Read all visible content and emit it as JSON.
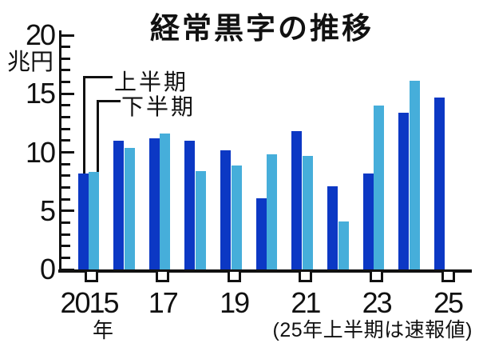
{
  "title": "経常黒字の推移",
  "y_axis": {
    "unit_label": "兆円",
    "major_tick_labels": [
      "20",
      "15",
      "10",
      "5",
      "0"
    ],
    "major_tick_values": [
      20,
      15,
      10,
      5,
      0
    ],
    "minor_step": 1,
    "max": 20,
    "min": 0
  },
  "x_axis": {
    "tick_labels": [
      "2015",
      "17",
      "19",
      "21",
      "23",
      "25"
    ],
    "labeled_pair_indices": [
      0,
      2,
      4,
      6,
      8,
      10
    ],
    "year_suffix": "年"
  },
  "legend": {
    "first_half_label": "上半期",
    "second_half_label": "下半期"
  },
  "footnote": "(25年上半期は速報値)",
  "colors": {
    "first_half": "#0c38c4",
    "second_half": "#46aeda",
    "axis": "#111111",
    "background": "#ffffff"
  },
  "chart_data": {
    "type": "bar",
    "title": "経常黒字の推移",
    "ylabel": "兆円",
    "xlabel": "年",
    "ylim": [
      0,
      20
    ],
    "y_major_ticks": [
      0,
      5,
      10,
      15,
      20
    ],
    "y_minor_step": 1,
    "grid": false,
    "legend_position": "top-left with connector lines to 2015 bars",
    "categories": [
      2015,
      2016,
      2017,
      2018,
      2019,
      2020,
      2021,
      2022,
      2023,
      2024,
      2025
    ],
    "series": [
      {
        "name": "上半期",
        "color": "#0c38c4",
        "values": [
          8.2,
          11.0,
          11.2,
          11.0,
          10.2,
          6.1,
          11.8,
          7.1,
          8.2,
          13.4,
          14.7
        ]
      },
      {
        "name": "下半期",
        "color": "#46aeda",
        "values": [
          8.3,
          10.4,
          11.6,
          8.4,
          8.9,
          9.8,
          9.7,
          4.1,
          14.0,
          16.1,
          null
        ]
      }
    ],
    "annotations": [
      "(25年上半期は速報値)"
    ]
  }
}
